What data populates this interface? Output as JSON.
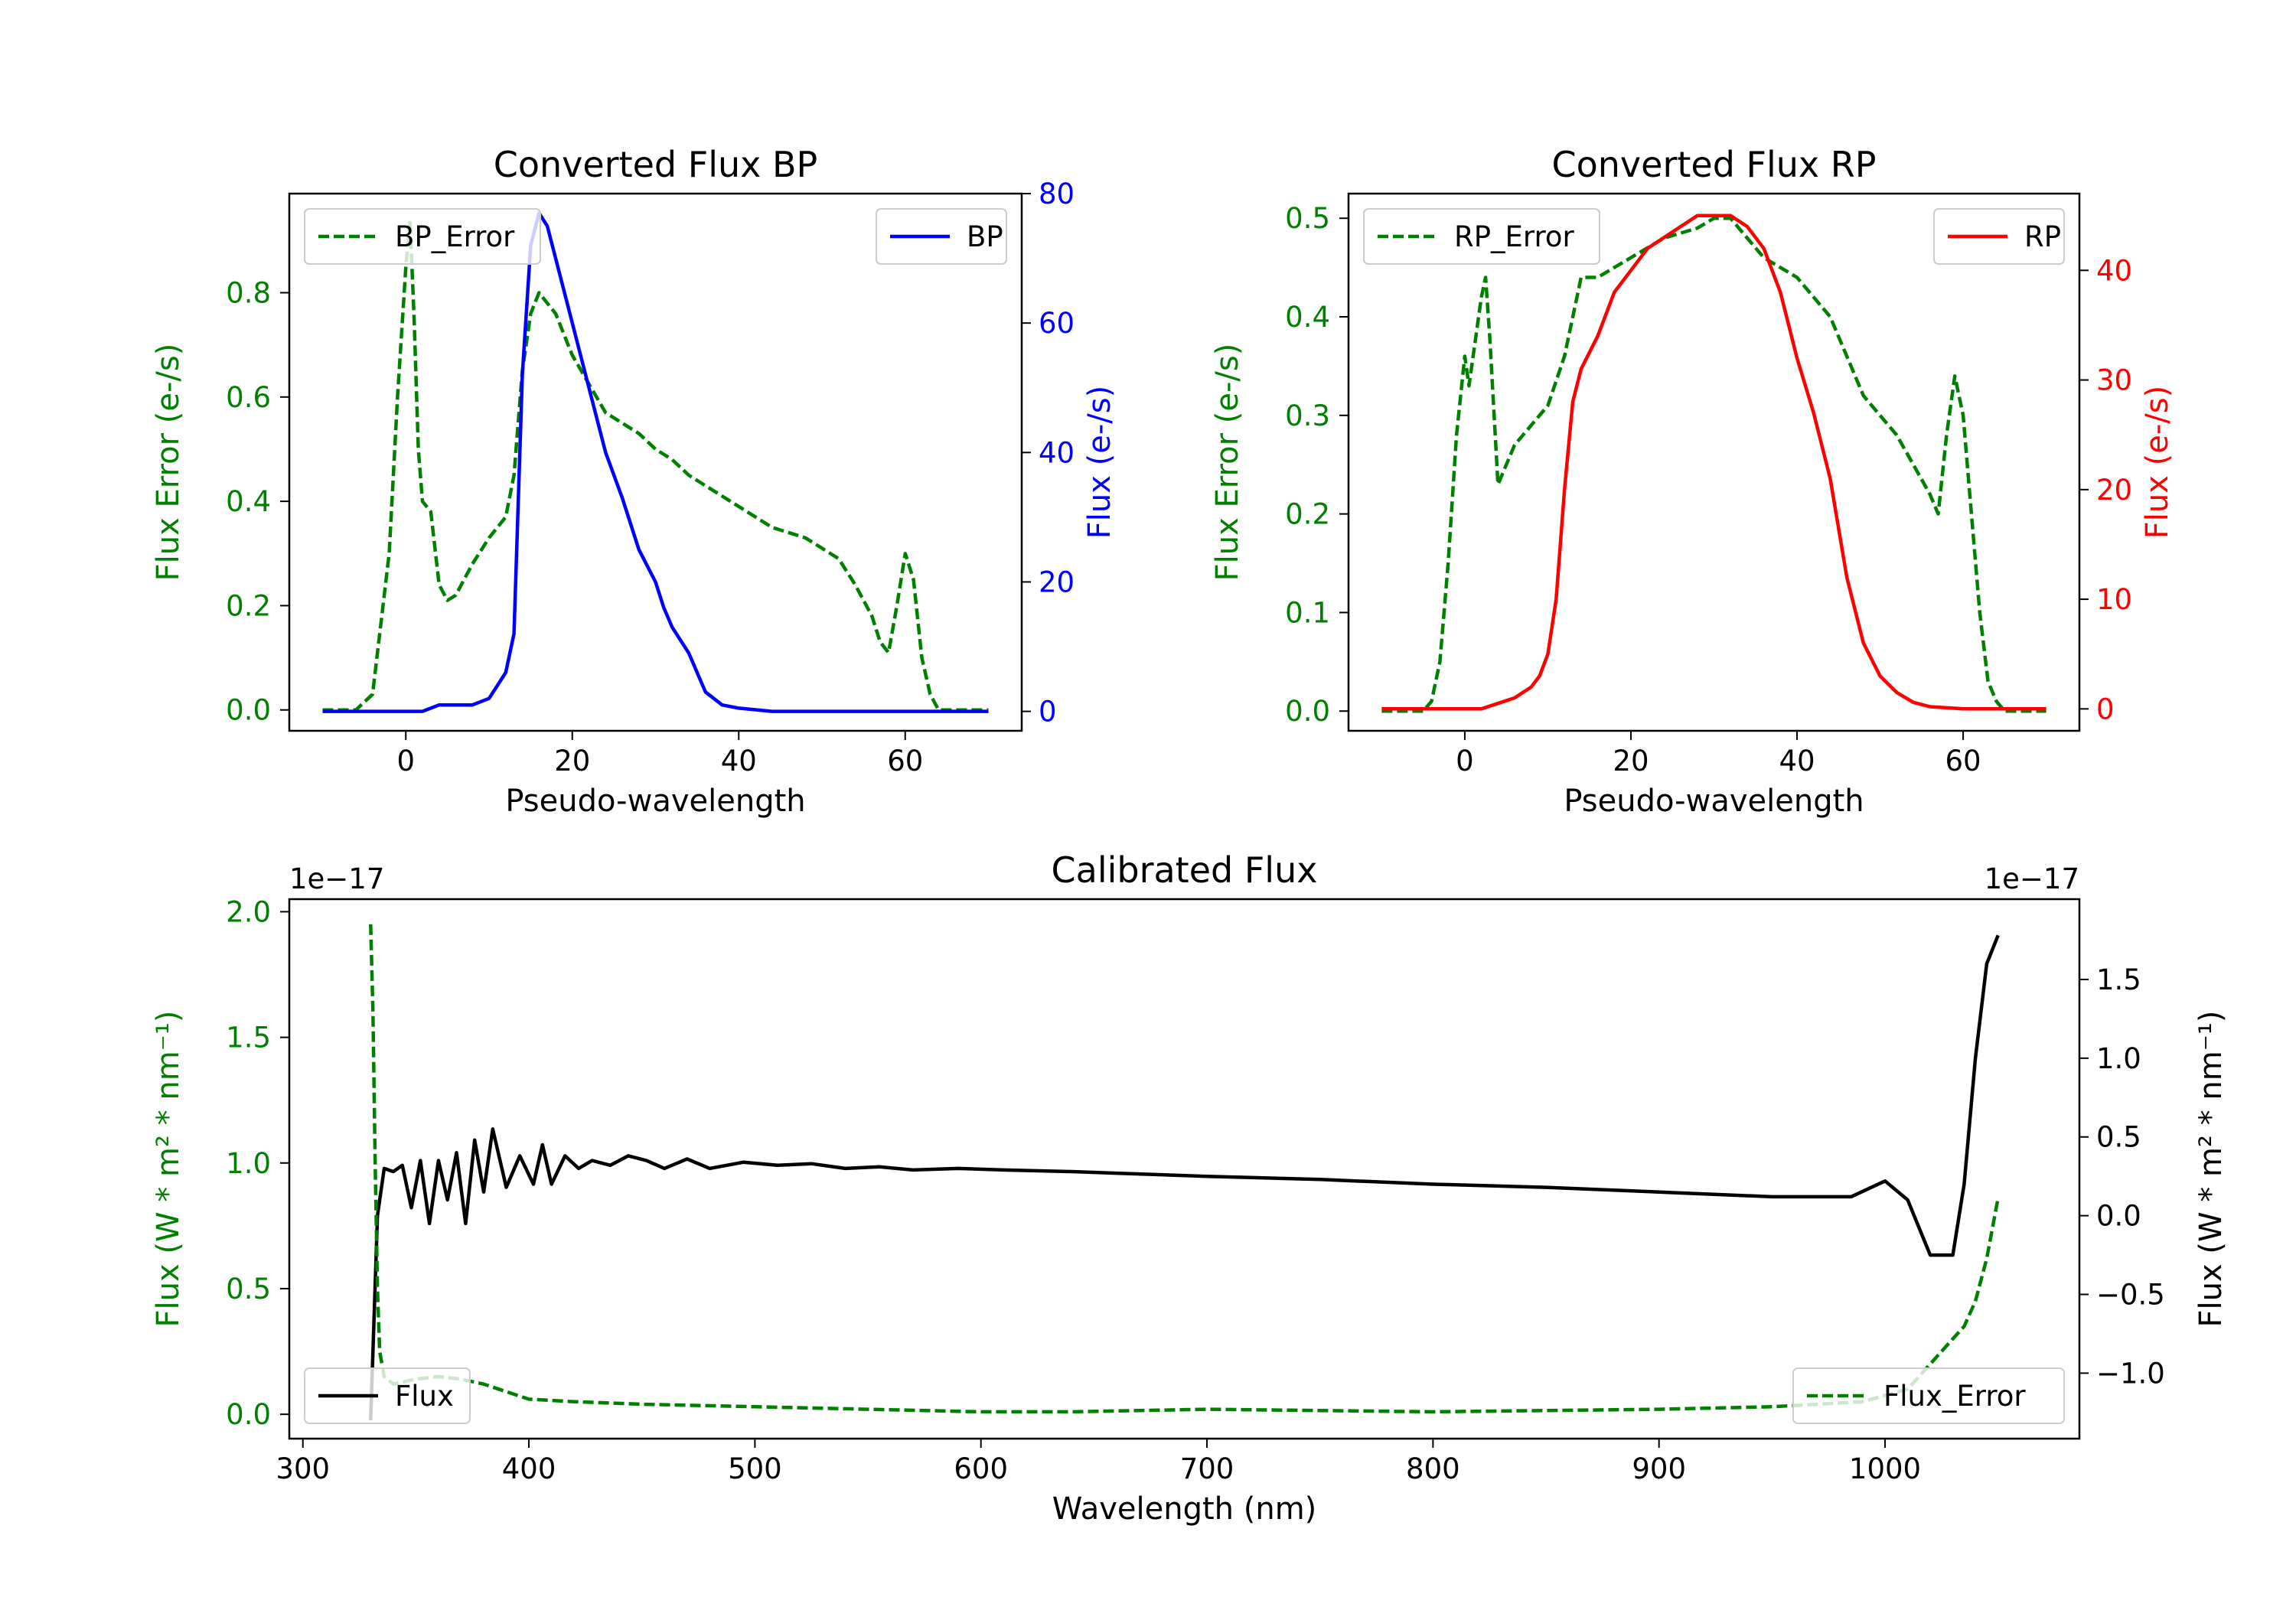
{
  "chart_data": [
    {
      "type": "line",
      "title": "Converted Flux BP",
      "xlabel": "Pseudo-wavelength",
      "xlim": [
        -14,
        74
      ],
      "xticks": [
        0,
        20,
        40,
        60
      ],
      "left_axis": {
        "label": "Flux Error (e-/s)",
        "color": "#008000",
        "ylim": [
          -0.04,
          0.99
        ],
        "ticks": [
          0.0,
          0.2,
          0.4,
          0.6,
          0.8
        ],
        "tick_labels": [
          "0.0",
          "0.2",
          "0.4",
          "0.6",
          "0.8"
        ]
      },
      "right_axis": {
        "label": "Flux (e-/s)",
        "color": "#0000ff",
        "ylim": [
          -3,
          80
        ],
        "ticks": [
          0,
          20,
          40,
          60,
          80
        ],
        "tick_labels": [
          "0",
          "20",
          "40",
          "60",
          "80"
        ]
      },
      "series": [
        {
          "name": "BP_Error",
          "axis": "left",
          "style": "dashed",
          "color": "#008000",
          "x": [
            -10,
            -6,
            -4,
            -2,
            -1,
            0,
            0.5,
            1,
            1.5,
            2,
            3,
            4,
            5,
            6,
            8,
            10,
            12,
            13,
            14,
            15,
            16,
            18,
            20,
            24,
            28,
            30,
            32,
            34,
            36,
            40,
            44,
            48,
            52,
            54,
            56,
            57,
            58,
            59,
            60,
            61,
            62,
            63,
            64,
            66,
            70
          ],
          "y": [
            0.0,
            0.0,
            0.03,
            0.3,
            0.6,
            0.85,
            0.94,
            0.75,
            0.5,
            0.4,
            0.38,
            0.24,
            0.21,
            0.22,
            0.28,
            0.33,
            0.37,
            0.45,
            0.65,
            0.76,
            0.8,
            0.76,
            0.68,
            0.57,
            0.53,
            0.5,
            0.48,
            0.45,
            0.43,
            0.39,
            0.35,
            0.33,
            0.29,
            0.24,
            0.18,
            0.13,
            0.11,
            0.2,
            0.3,
            0.25,
            0.1,
            0.03,
            0.0,
            0.0,
            0.0
          ]
        },
        {
          "name": "BP",
          "axis": "right",
          "style": "solid",
          "color": "#0000ff",
          "x": [
            -10,
            -5,
            -2,
            0,
            2,
            4,
            6,
            8,
            10,
            11,
            12,
            13,
            14,
            15,
            16,
            17,
            18,
            20,
            22,
            24,
            26,
            28,
            30,
            31,
            32,
            34,
            35,
            36,
            38,
            40,
            44,
            50,
            60,
            70
          ],
          "y": [
            0,
            0,
            0,
            0,
            0,
            1,
            1,
            1,
            2,
            4,
            6,
            12,
            52,
            72,
            77,
            75,
            70,
            60,
            50,
            40,
            33,
            25,
            20,
            16,
            13,
            9,
            6,
            3,
            1,
            0.5,
            0,
            0,
            0,
            0
          ]
        }
      ],
      "legends": [
        {
          "entries": [
            "BP_Error"
          ],
          "loc": "upper left"
        },
        {
          "entries": [
            "BP"
          ],
          "loc": "upper right"
        }
      ]
    },
    {
      "type": "line",
      "title": "Converted Flux RP",
      "xlabel": "Pseudo-wavelength",
      "xlim": [
        -14,
        74
      ],
      "xticks": [
        0,
        20,
        40,
        60
      ],
      "left_axis": {
        "label": "Flux Error (e-/s)",
        "color": "#008000",
        "ylim": [
          -0.02,
          0.525
        ],
        "ticks": [
          0.0,
          0.1,
          0.2,
          0.3,
          0.4,
          0.5
        ],
        "tick_labels": [
          "0.0",
          "0.1",
          "0.2",
          "0.3",
          "0.4",
          "0.5"
        ]
      },
      "right_axis": {
        "label": "Flux (e-/s)",
        "color": "#ff0000",
        "ylim": [
          -2,
          47
        ],
        "ticks": [
          0,
          10,
          20,
          30,
          40
        ],
        "tick_labels": [
          "0",
          "10",
          "20",
          "30",
          "40"
        ]
      },
      "series": [
        {
          "name": "RP_Error",
          "axis": "left",
          "style": "dashed",
          "color": "#008000",
          "x": [
            -10,
            -5,
            -4,
            -3,
            -2,
            -1,
            0,
            0.5,
            1,
            2,
            2.5,
            3,
            4,
            5,
            6,
            8,
            10,
            12,
            14,
            16,
            18,
            20,
            24,
            28,
            30,
            32,
            34,
            36,
            40,
            44,
            48,
            52,
            54,
            56,
            57,
            58,
            59,
            60,
            61,
            62,
            63,
            64,
            65,
            70
          ],
          "y": [
            0.0,
            0.0,
            0.01,
            0.05,
            0.15,
            0.28,
            0.36,
            0.33,
            0.36,
            0.42,
            0.44,
            0.38,
            0.23,
            0.25,
            0.27,
            0.29,
            0.31,
            0.36,
            0.44,
            0.44,
            0.45,
            0.46,
            0.48,
            0.49,
            0.5,
            0.5,
            0.48,
            0.46,
            0.44,
            0.4,
            0.32,
            0.28,
            0.25,
            0.22,
            0.2,
            0.28,
            0.34,
            0.3,
            0.2,
            0.1,
            0.03,
            0.01,
            0.0,
            0.0
          ]
        },
        {
          "name": "RP",
          "axis": "right",
          "style": "solid",
          "color": "#ff0000",
          "x": [
            -10,
            0,
            2,
            4,
            6,
            8,
            9,
            10,
            11,
            12,
            13,
            14,
            16,
            18,
            20,
            22,
            24,
            26,
            28,
            30,
            32,
            34,
            36,
            38,
            40,
            42,
            44,
            46,
            48,
            50,
            52,
            54,
            56,
            60,
            70
          ],
          "y": [
            0,
            0,
            0,
            0.5,
            1,
            2,
            3,
            5,
            10,
            20,
            28,
            31,
            34,
            38,
            40,
            42,
            43,
            44,
            45,
            45,
            45,
            44,
            42,
            38,
            32,
            27,
            21,
            12,
            6,
            3,
            1.5,
            0.6,
            0.2,
            0,
            0
          ]
        }
      ],
      "legends": [
        {
          "entries": [
            "RP_Error"
          ],
          "loc": "upper left"
        },
        {
          "entries": [
            "RP"
          ],
          "loc": "upper right"
        }
      ]
    },
    {
      "type": "line",
      "title": "Calibrated Flux",
      "xlabel": "Wavelength (nm)",
      "xlim": [
        294,
        1086
      ],
      "xticks": [
        300,
        400,
        500,
        600,
        700,
        800,
        900,
        1000
      ],
      "left_axis": {
        "label": "Flux (W * m² * nm⁻¹)",
        "color": "#008000",
        "offset_text": "1e−17",
        "ylim": [
          -0.097,
          2.05
        ],
        "ticks": [
          0.0,
          0.5,
          1.0,
          1.5,
          2.0
        ],
        "tick_labels": [
          "0.0",
          "0.5",
          "1.0",
          "1.5",
          "2.0"
        ]
      },
      "right_axis": {
        "label": "Flux (W * m² * nm⁻¹)",
        "color": "#000000",
        "offset_text": "1e−17",
        "ylim": [
          -1.416,
          2.01
        ],
        "ticks": [
          -1.0,
          -0.5,
          0.0,
          0.5,
          1.0,
          1.5
        ],
        "tick_labels": [
          "−1.0",
          "−0.5",
          "0.0",
          "0.5",
          "1.0",
          "1.5"
        ]
      },
      "series": [
        {
          "name": "Flux",
          "axis": "right",
          "style": "solid",
          "color": "#000000",
          "x": [
            330,
            333,
            336,
            340,
            344,
            348,
            352,
            356,
            360,
            364,
            368,
            372,
            376,
            380,
            384,
            390,
            396,
            402,
            406,
            410,
            416,
            422,
            428,
            436,
            444,
            452,
            460,
            470,
            480,
            495,
            510,
            525,
            540,
            555,
            570,
            590,
            610,
            640,
            660,
            700,
            750,
            800,
            850,
            900,
            950,
            985,
            1000,
            1010,
            1020,
            1030,
            1035,
            1040,
            1045,
            1050
          ],
          "y": [
            -1.3,
            0.0,
            0.3,
            0.28,
            0.32,
            0.05,
            0.35,
            -0.05,
            0.35,
            0.1,
            0.4,
            -0.05,
            0.48,
            0.15,
            0.55,
            0.18,
            0.38,
            0.2,
            0.45,
            0.2,
            0.38,
            0.3,
            0.35,
            0.32,
            0.38,
            0.35,
            0.3,
            0.36,
            0.3,
            0.34,
            0.32,
            0.33,
            0.3,
            0.31,
            0.29,
            0.3,
            0.29,
            0.28,
            0.27,
            0.25,
            0.23,
            0.2,
            0.18,
            0.15,
            0.12,
            0.12,
            0.22,
            0.1,
            -0.25,
            -0.25,
            0.2,
            1.0,
            1.6,
            1.78
          ]
        },
        {
          "name": "Flux_Error",
          "axis": "left",
          "style": "dashed",
          "color": "#008000",
          "x": [
            330,
            331,
            332,
            333,
            334,
            336,
            340,
            345,
            350,
            360,
            370,
            380,
            390,
            400,
            420,
            450,
            500,
            550,
            600,
            640,
            700,
            800,
            900,
            950,
            990,
            1010,
            1020,
            1030,
            1035,
            1040,
            1045,
            1050
          ],
          "y": [
            1.95,
            1.6,
            1.0,
            0.5,
            0.25,
            0.15,
            0.12,
            0.13,
            0.14,
            0.15,
            0.14,
            0.12,
            0.09,
            0.06,
            0.05,
            0.04,
            0.03,
            0.02,
            0.01,
            0.01,
            0.02,
            0.01,
            0.02,
            0.03,
            0.05,
            0.1,
            0.2,
            0.3,
            0.35,
            0.45,
            0.62,
            0.86
          ]
        }
      ],
      "legends": [
        {
          "entries": [
            "Flux"
          ],
          "loc": "lower left"
        },
        {
          "entries": [
            "Flux_Error"
          ],
          "loc": "lower right"
        }
      ]
    }
  ]
}
